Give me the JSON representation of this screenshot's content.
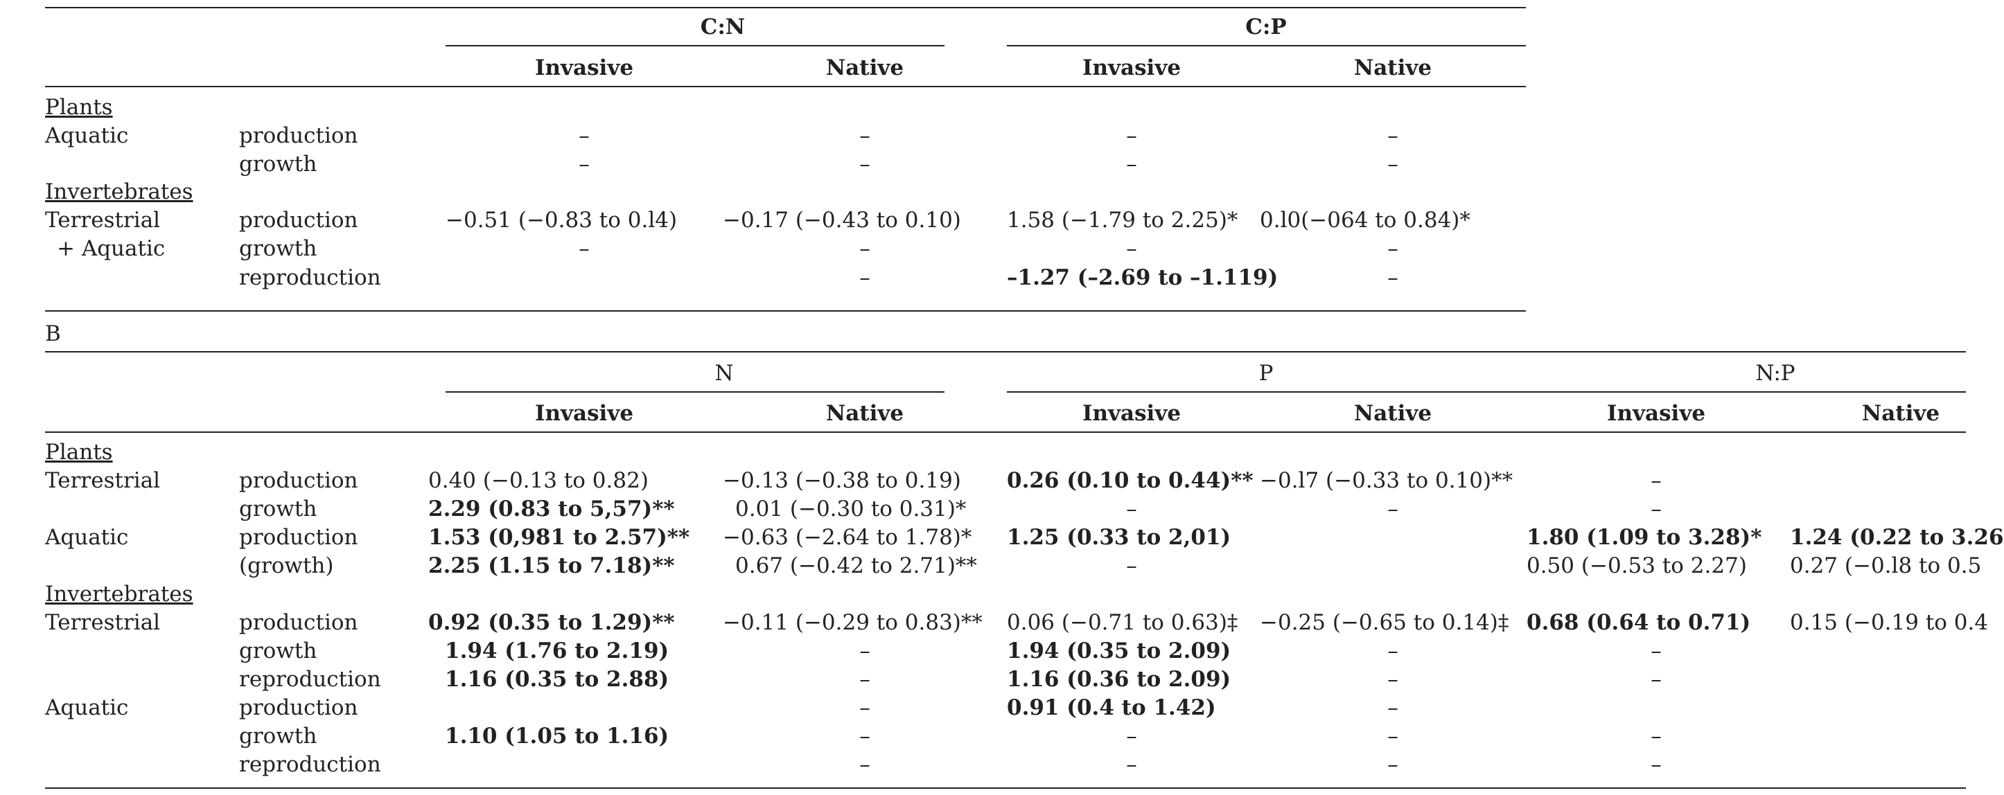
{
  "tableA": {
    "header_groups": [
      "C:N",
      "C:P"
    ],
    "subheaders": [
      "Invasive",
      "Native",
      "Invasive",
      "Native"
    ],
    "rows": [
      {
        "group": "Plants",
        "name": "",
        "measure": "",
        "values": []
      },
      {
        "group": "",
        "name": "Aquatic",
        "measure": "production",
        "values": [
          "–",
          "–",
          "–",
          "–"
        ]
      },
      {
        "group": "",
        "name": "",
        "measure": "growth",
        "values": [
          "–",
          "–",
          "–",
          "–"
        ]
      },
      {
        "group": "Invertebrates",
        "name": "",
        "measure": "",
        "values": []
      },
      {
        "group": "",
        "name": "Terrestrial",
        "measure": "production",
        "values": [
          "−0.51 (−0.83 to 0.l4)",
          "−0.17 (−0.43 to 0.10)",
          "1.58 (−1.79 to 2.25)*",
          "0.l0(−064 to 0.84)*"
        ]
      },
      {
        "group": "",
        "name": "+ Aquatic",
        "measure": "growth",
        "values": [
          "–",
          "–",
          "–",
          "–"
        ]
      },
      {
        "group": "",
        "name": "",
        "measure": "reproduction",
        "values": [
          "",
          "–",
          "–1.27 (–2.69 to –1.119)",
          "–"
        ]
      }
    ]
  },
  "section_b_label": "B",
  "tableB": {
    "header_groups": [
      "N",
      "P",
      "N:P"
    ],
    "subheaders": [
      "Invasive",
      "Native",
      "Invasive",
      "Native",
      "Invasive",
      "Native"
    ],
    "rows": [
      {
        "group": "Plants",
        "name": "",
        "measure": "",
        "values": []
      },
      {
        "group": "",
        "name": "Terrestrial",
        "measure": "production",
        "values": [
          "0.40 (−0.13 to 0.82)",
          "−0.13 (−0.38 to 0.19)",
          "0.26 (0.10 to 0.44)**",
          "−0.l7 (−0.33 to 0.10)**",
          "–",
          ""
        ]
      },
      {
        "group": "",
        "name": "",
        "measure": "growth",
        "values": [
          "2.29 (0.83 to 5,57)**",
          "0.01 (−0.30 to 0.31)*",
          "–",
          "–",
          "–",
          ""
        ]
      },
      {
        "group": "",
        "name": "Aquatic",
        "measure": "production",
        "values": [
          "1.53 (0,981 to 2.57)**",
          "−0.63 (−2.64 to 1.78)*",
          "1.25 (0.33 to 2,01)",
          "",
          "1.80 (1.09 to 3.28)*",
          "1.24 (0.22 to 3.26"
        ]
      },
      {
        "group": "",
        "name": "",
        "measure": "(growth)",
        "values": [
          "2.25 (1.15 to 7.18)**",
          "0.67 (−0.42 to 2.71)**",
          "–",
          "",
          "0.50 (−0.53 to 2.27)",
          "0.27 (−0.l8 to 0.5"
        ]
      },
      {
        "group": "Invertebrates",
        "name": "",
        "measure": "",
        "values": []
      },
      {
        "group": "",
        "name": "Terrestrial",
        "measure": "production",
        "values": [
          "0.92 (0.35 to 1.29)**",
          "−0.11 (−0.29 to 0.83)**",
          "0.06 (−0.71 to 0.63)‡",
          "−0.25 (−0.65 to 0.14)‡",
          "0.68 (0.64 to 0.71)",
          "0.15 (−0.19 to 0.4"
        ]
      },
      {
        "group": "",
        "name": "",
        "measure": "growth",
        "values": [
          "1.94 (1.76 to 2.19)",
          "–",
          "1.94 (0.35 to 2.09)",
          "–",
          "–",
          ""
        ]
      },
      {
        "group": "",
        "name": "",
        "measure": "reproduction",
        "values": [
          "1.16 (0.35 to 2.88)",
          "–",
          "1.16 (0.36 to 2.09)",
          "–",
          "–",
          ""
        ]
      },
      {
        "group": "",
        "name": "Aquatic",
        "measure": "production",
        "values": [
          "",
          "–",
          "0.91 (0.4 to 1.42)",
          "–",
          "",
          ""
        ]
      },
      {
        "group": "",
        "name": "",
        "measure": "growth",
        "values": [
          "1.10 (1.05 to 1.16)",
          "–",
          "–",
          "–",
          "–",
          ""
        ]
      },
      {
        "group": "",
        "name": "",
        "measure": "reproduction",
        "values": [
          "",
          "–",
          "–",
          "–",
          "–",
          ""
        ]
      }
    ]
  }
}
